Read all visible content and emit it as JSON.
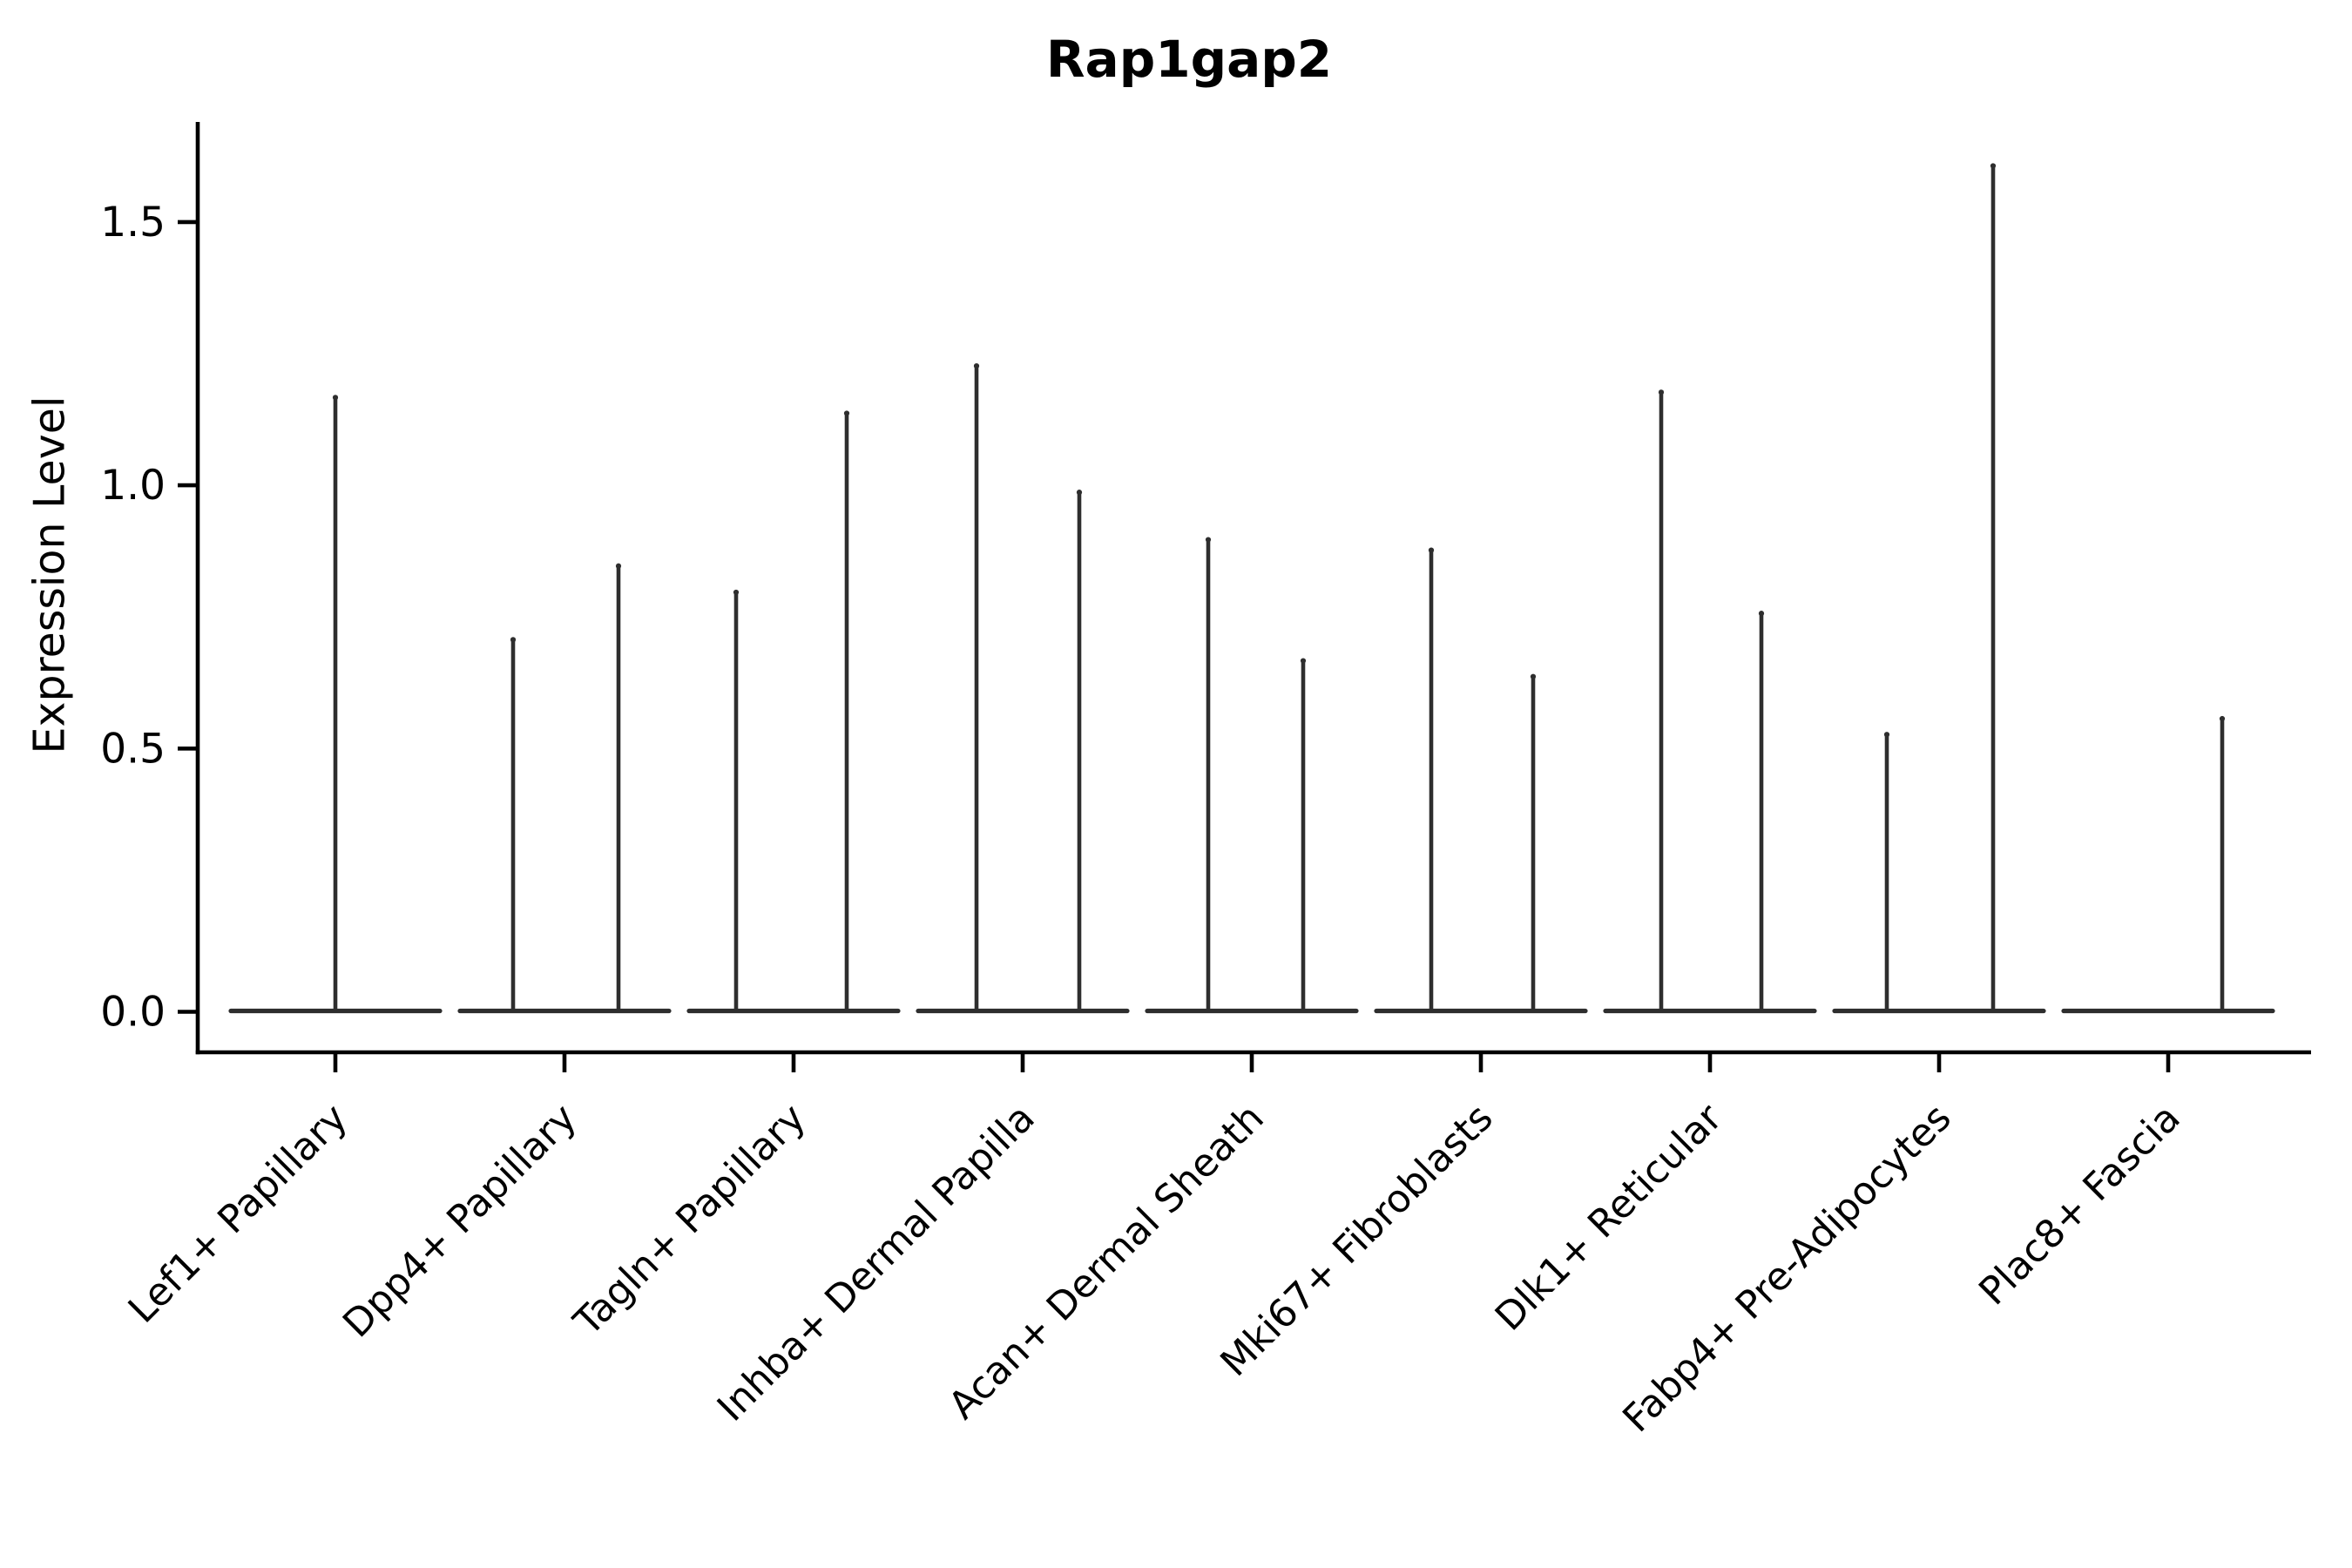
{
  "figure": {
    "background": "#ffffff"
  },
  "chart_data": {
    "type": "violin",
    "title": "Rap1gap2",
    "xlabel": "",
    "ylabel": "Expression Level",
    "yticks": [
      "0.0",
      "0.5",
      "1.0",
      "1.5"
    ],
    "ytick_values": [
      0.0,
      0.5,
      1.0,
      1.5
    ],
    "ylim": [
      -0.08,
      1.69
    ],
    "grid": false,
    "legend": "none",
    "categories": [
      "Lef1+ Papillary",
      "Dpp4+ Papillary",
      "Tagln+ Papillary",
      "Inhba+ Dermal Papilla",
      "Acan+ Dermal Sheath",
      "Mki67+ Fibroblasts",
      "Dlk1+ Reticular",
      "Fabp4+ Pre-Adipocytes",
      "Plac8+ Fascia"
    ],
    "violins": [
      {
        "category": "Lef1+ Papillary",
        "baseline_value": 0,
        "spikes": [
          {
            "dx": 0,
            "value": 1.17
          }
        ]
      },
      {
        "category": "Dpp4+ Papillary",
        "baseline_value": 0,
        "spikes": [
          {
            "dx": -59,
            "value": 0.71
          },
          {
            "dx": 62,
            "value": 0.85
          }
        ]
      },
      {
        "category": "Tagln+ Papillary",
        "baseline_value": 0,
        "spikes": [
          {
            "dx": -66,
            "value": 0.8
          },
          {
            "dx": 61,
            "value": 1.14
          }
        ]
      },
      {
        "category": "Inhba+ Dermal Papilla",
        "baseline_value": 0,
        "spikes": [
          {
            "dx": -53,
            "value": 1.23
          },
          {
            "dx": 65,
            "value": 0.99
          }
        ]
      },
      {
        "category": "Acan+ Dermal Sheath",
        "baseline_value": 0,
        "spikes": [
          {
            "dx": -50,
            "value": 0.9
          },
          {
            "dx": 59,
            "value": 0.67
          }
        ]
      },
      {
        "category": "Mki67+ Fibroblasts",
        "baseline_value": 0,
        "spikes": [
          {
            "dx": -57,
            "value": 0.88
          },
          {
            "dx": 60,
            "value": 0.64
          }
        ]
      },
      {
        "category": "Dlk1+ Reticular",
        "baseline_value": 0,
        "spikes": [
          {
            "dx": -56,
            "value": 1.18
          },
          {
            "dx": 59,
            "value": 0.76
          }
        ]
      },
      {
        "category": "Fabp4+ Pre-Adipocytes",
        "baseline_value": 0,
        "spikes": [
          {
            "dx": -60,
            "value": 0.53
          },
          {
            "dx": 62,
            "value": 1.61
          }
        ]
      },
      {
        "category": "Plac8+ Fascia",
        "baseline_value": 0,
        "spikes": [
          {
            "dx": 62,
            "value": 0.56
          }
        ]
      }
    ],
    "colors": {
      "violin_line": "#2e2e2e",
      "axis": "#000000",
      "text": "#000000",
      "background": "#ffffff"
    }
  }
}
